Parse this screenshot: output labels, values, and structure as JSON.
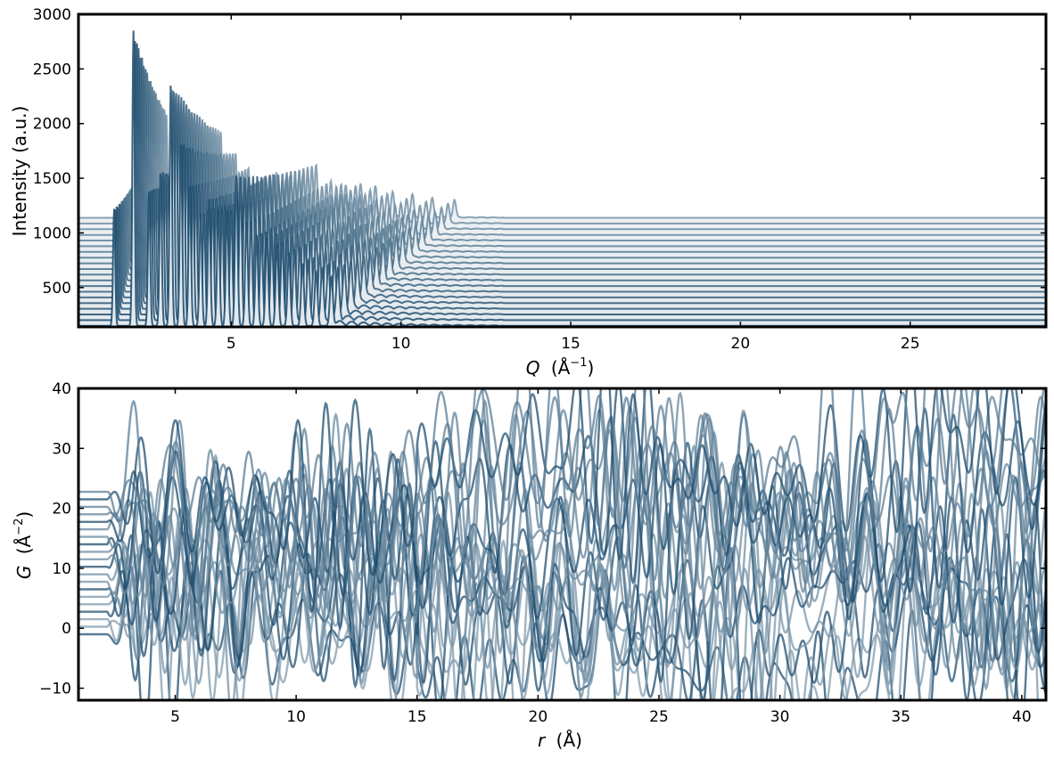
{
  "chart_data": [
    {
      "type": "line",
      "description_of_series": "stacked waterfall of diffraction patterns, offset upward",
      "xlabel": "Q (Å⁻¹)",
      "xlabel_main": "Q",
      "xlabel_unit": "(Å",
      "xlabel_exp": "−1",
      "xlabel_close": ")",
      "ylabel": "Intensity (a.u.)",
      "xlim": [
        0.5,
        29
      ],
      "ylim": [
        140,
        3000
      ],
      "xticks": [
        5,
        10,
        15,
        20,
        25
      ],
      "xtick_labels": [
        "5",
        "10",
        "15",
        "20",
        "25"
      ],
      "yticks": [
        500,
        1000,
        1500,
        2000,
        2500,
        3000
      ],
      "ytick_labels": [
        "500",
        "1000",
        "1500",
        "2000",
        "2500",
        "3000"
      ],
      "grid": false,
      "legend": "none",
      "series_count": 20,
      "baseline_start": 150,
      "baseline_step": 52,
      "peaks": [
        {
          "q": 1.55,
          "h": 1220
        },
        {
          "q": 2.12,
          "h": 2850
        },
        {
          "q": 2.58,
          "h": 1390
        },
        {
          "q": 2.92,
          "h": 1560
        },
        {
          "q": 3.22,
          "h": 2370
        },
        {
          "q": 3.52,
          "h": 1820
        },
        {
          "q": 3.78,
          "h": 1440
        },
        {
          "q": 4.1,
          "h": 1180
        },
        {
          "q": 4.35,
          "h": 1320
        },
        {
          "q": 4.62,
          "h": 1220
        },
        {
          "q": 4.88,
          "h": 1200
        },
        {
          "q": 5.15,
          "h": 1520
        },
        {
          "q": 5.45,
          "h": 1100
        },
        {
          "q": 5.75,
          "h": 980
        },
        {
          "q": 6.05,
          "h": 960
        },
        {
          "q": 6.35,
          "h": 900
        },
        {
          "q": 6.7,
          "h": 820
        },
        {
          "q": 7.1,
          "h": 720
        },
        {
          "q": 7.5,
          "h": 640
        },
        {
          "q": 7.95,
          "h": 600
        }
      ],
      "peak_shift_per_series": 0.072,
      "color_light": "#a9bcc9",
      "color_dark": "#18486a"
    },
    {
      "type": "line",
      "description_of_series": "stacked pair distribution functions, offset upward",
      "xlabel": "r (Å)",
      "xlabel_main": "r",
      "xlabel_unit": "(Å)",
      "ylabel": "G (Å⁻²)",
      "ylabel_main": "G",
      "ylabel_unit": "(Å",
      "ylabel_exp": "−2",
      "ylabel_close": ")",
      "xlim": [
        1,
        41
      ],
      "ylim": [
        -12,
        40
      ],
      "xticks": [
        5,
        10,
        15,
        20,
        25,
        30,
        35,
        40
      ],
      "xtick_labels": [
        "5",
        "10",
        "15",
        "20",
        "25",
        "30",
        "35",
        "40"
      ],
      "yticks": [
        -10,
        0,
        10,
        20,
        30,
        40
      ],
      "ytick_labels": [
        "−10",
        "0",
        "10",
        "20",
        "30",
        "40"
      ],
      "grid": false,
      "legend": "none",
      "series_count": 20,
      "offset_start": -1,
      "offset_step": 1.25,
      "color_light": "#a9bcc9",
      "color_dark": "#18486a"
    }
  ]
}
